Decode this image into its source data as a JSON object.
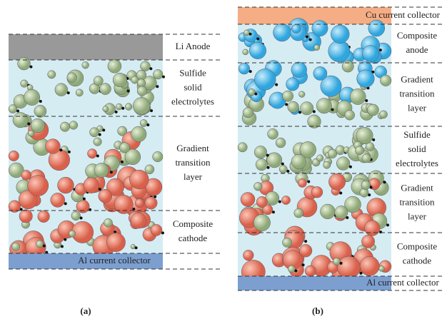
{
  "panels": [
    {
      "caption": "(a)",
      "layers": [
        {
          "lines": [
            "Li Anode"
          ]
        },
        {
          "lines": [
            "Sulfide",
            "solid",
            "electrolytes"
          ]
        },
        {
          "lines": [
            "Gradient",
            "transition",
            "layer"
          ]
        },
        {
          "lines": [
            "Composite",
            "cathode"
          ]
        },
        {
          "lines": [
            "Al current collector"
          ]
        }
      ]
    },
    {
      "caption": "(b)",
      "layers": [
        {
          "lines": [
            "Cu current collector"
          ]
        },
        {
          "lines": [
            "Composite",
            "anode"
          ]
        },
        {
          "lines": [
            "Gradient",
            "transition",
            "layer"
          ]
        },
        {
          "lines": [
            "Sulfide",
            "solid",
            "electrolytes"
          ]
        },
        {
          "lines": [
            "Gradient",
            "transition",
            "layer"
          ]
        },
        {
          "lines": [
            "Composite",
            "cathode"
          ]
        },
        {
          "lines": [
            "Al current collector"
          ]
        }
      ]
    }
  ]
}
